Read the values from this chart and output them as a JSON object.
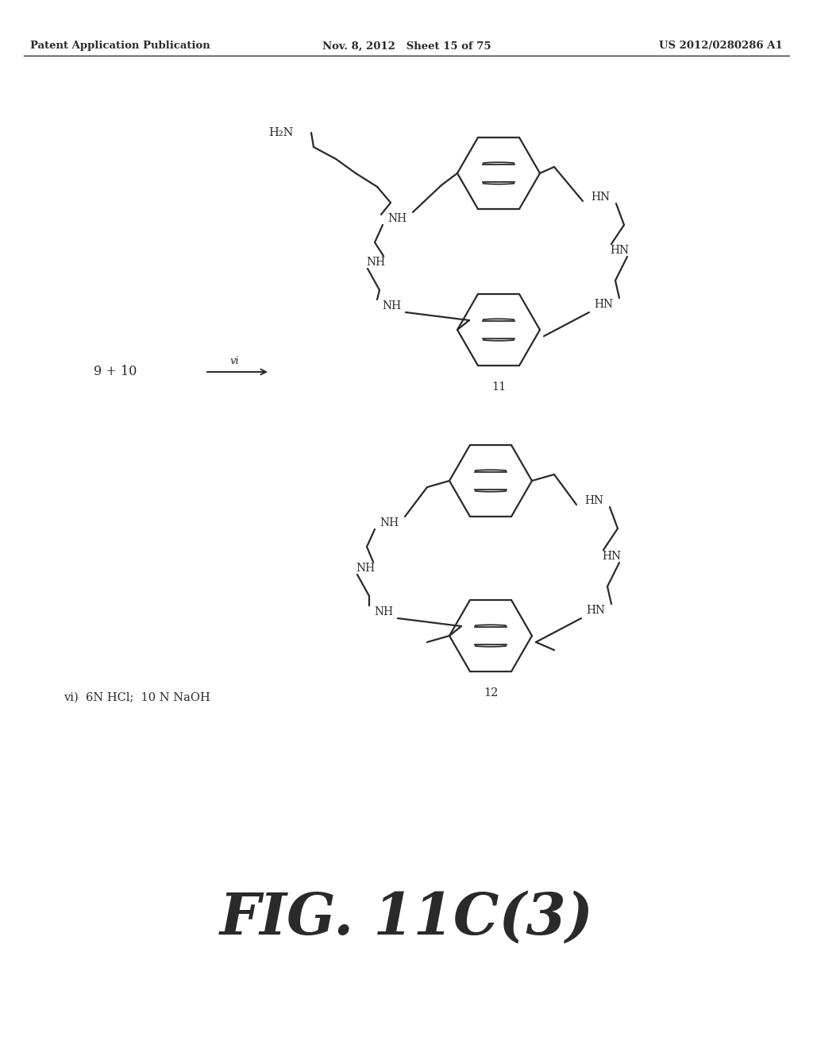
{
  "header_left": "Patent Application Publication",
  "header_mid": "Nov. 8, 2012   Sheet 15 of 75",
  "header_right": "US 2012/0280286 A1",
  "footer_title": "FIG. 11C(3)",
  "reaction_label": "9 + 10",
  "reaction_step": "vi",
  "compound11_label": "11",
  "compound12_label": "12",
  "footnote": "vi)  6N HCl;  10 N NaOH",
  "bg_color": "#ffffff",
  "line_color": "#2a2a2a"
}
